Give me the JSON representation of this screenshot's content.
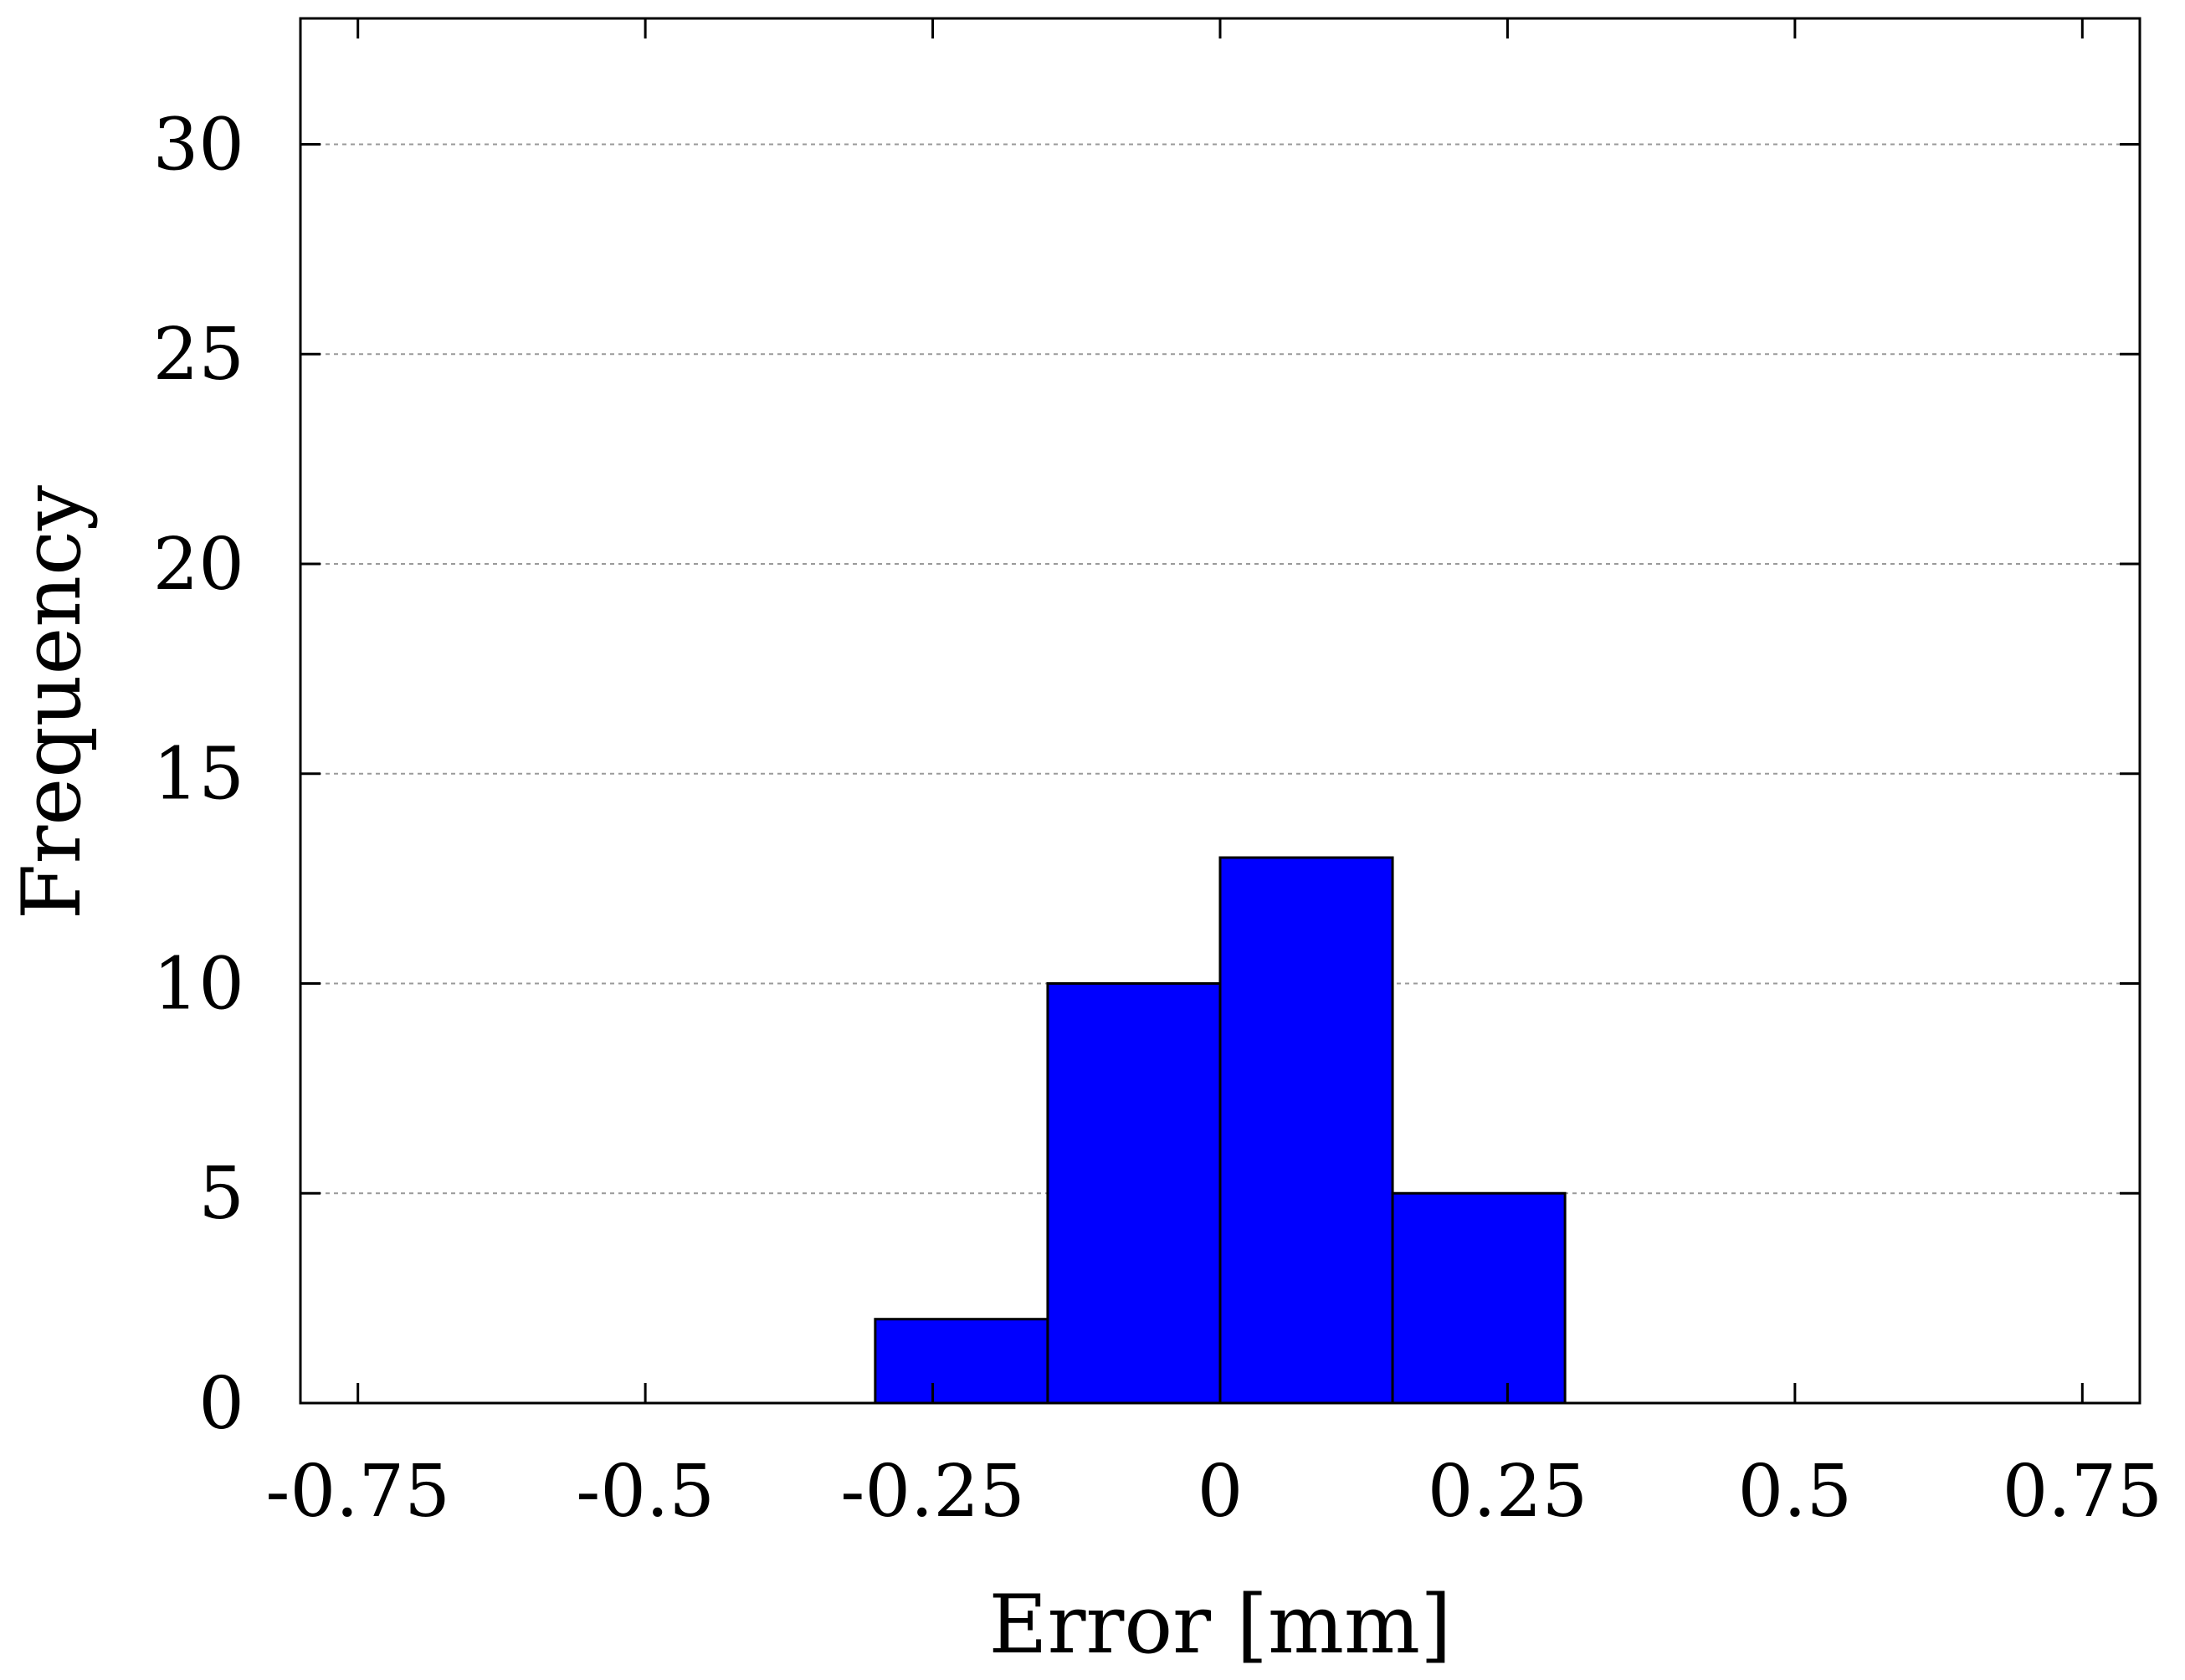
{
  "chart_data": {
    "type": "bar",
    "title": "",
    "xlabel": "Error [mm]",
    "ylabel": "Frequency",
    "xlim": [
      -0.8,
      0.8
    ],
    "ylim": [
      0,
      33
    ],
    "xticks": [
      -0.75,
      -0.5,
      -0.25,
      0,
      0.25,
      0.5,
      0.75
    ],
    "xtick_labels": [
      "-0.75",
      "-0.5",
      "-0.25",
      "0",
      "0.25",
      "0.5",
      "0.75"
    ],
    "yticks": [
      0,
      5,
      10,
      15,
      20,
      25,
      30
    ],
    "ytick_labels": [
      "0",
      "5",
      "10",
      "15",
      "20",
      "25",
      "30"
    ],
    "grid": "horizontal dashed",
    "legend": "none",
    "bar_color": "#0000ff",
    "bins": [
      {
        "x0": -0.3,
        "x1": -0.15,
        "count": 2
      },
      {
        "x0": -0.15,
        "x1": 0.0,
        "count": 10
      },
      {
        "x0": 0.0,
        "x1": 0.15,
        "count": 13
      },
      {
        "x0": 0.15,
        "x1": 0.3,
        "count": 5
      }
    ]
  }
}
